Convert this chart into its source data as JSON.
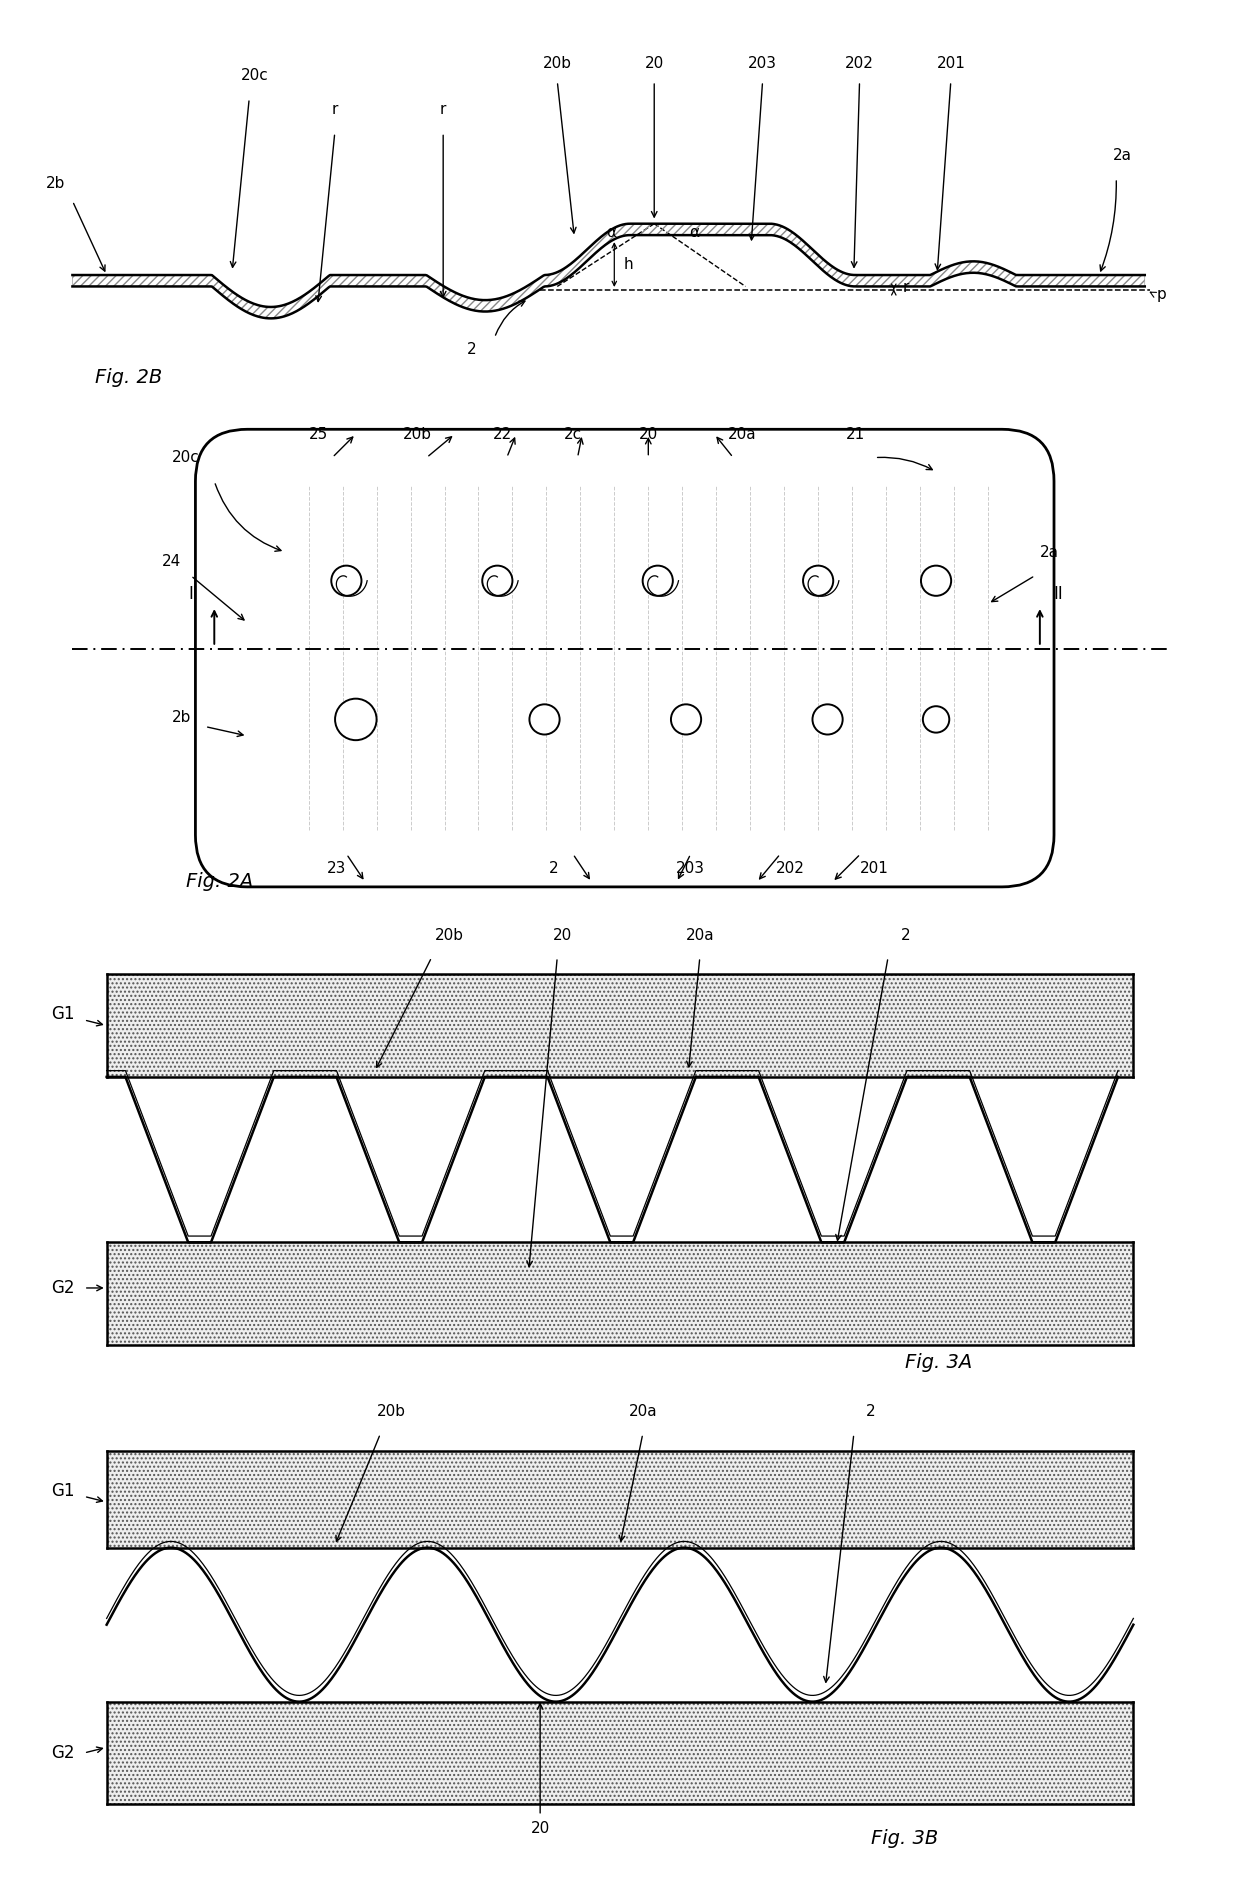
{
  "bg_color": "#ffffff",
  "fig2b_label": "Fig. 2B",
  "fig2a_label": "Fig. 2A",
  "fig3a_label": "Fig. 3A",
  "fig3b_label": "Fig. 3B",
  "hatch_pad": ".....",
  "pad_color": "#e8e8e8",
  "fontsize_label": 13,
  "fontsize_ann": 11,
  "lw_main": 1.8,
  "lw_thin": 1.0
}
